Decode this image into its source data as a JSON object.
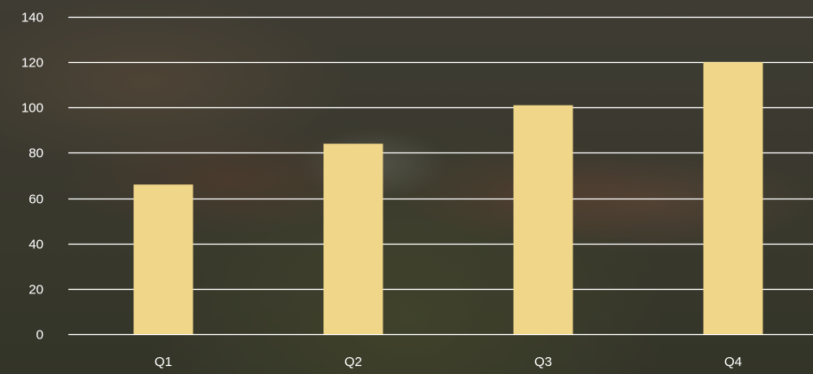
{
  "chart_data": {
    "type": "bar",
    "categories": [
      "Q1",
      "Q2",
      "Q3",
      "Q4"
    ],
    "values": [
      66,
      84,
      101,
      120
    ],
    "title": "",
    "xlabel": "",
    "ylabel": "",
    "ylim": [
      0,
      140
    ],
    "yticks": [
      0,
      20,
      40,
      60,
      80,
      100,
      120,
      140
    ],
    "grid": true,
    "legend": "none",
    "bar_color": "#f0d688",
    "grid_color": "#ffffff",
    "label_color": "#ffffff"
  }
}
